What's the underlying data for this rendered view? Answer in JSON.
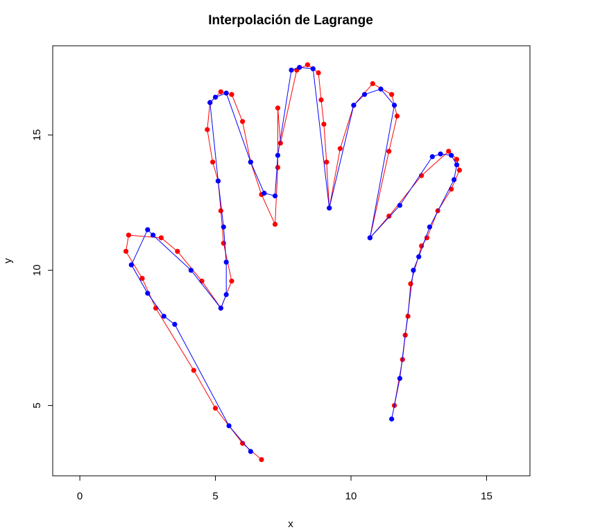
{
  "chart_data": {
    "type": "line",
    "title": "Interpolación de Lagrange",
    "xlabel": "x",
    "ylabel": "y",
    "xlim": [
      -1,
      16.6
    ],
    "ylim": [
      2.4,
      18.3
    ],
    "x_ticks": [
      0,
      5,
      10,
      15
    ],
    "y_ticks": [
      5,
      10,
      15
    ],
    "grid": false,
    "legend": "none",
    "series": [
      {
        "color": "#ff0000",
        "marker": "circle",
        "points": [
          [
            6.7,
            3.0
          ],
          [
            6.0,
            3.6
          ],
          [
            5.0,
            4.9
          ],
          [
            4.2,
            6.3
          ],
          [
            2.8,
            8.6
          ],
          [
            2.3,
            9.7
          ],
          [
            1.7,
            10.7
          ],
          [
            1.8,
            11.3
          ],
          [
            3.0,
            11.2
          ],
          [
            3.6,
            10.7
          ],
          [
            4.5,
            9.6
          ],
          [
            5.2,
            8.6
          ],
          [
            5.6,
            9.6
          ],
          [
            5.3,
            11.0
          ],
          [
            5.2,
            12.2
          ],
          [
            5.1,
            13.3
          ],
          [
            4.9,
            14.0
          ],
          [
            4.7,
            15.2
          ],
          [
            4.8,
            16.2
          ],
          [
            5.2,
            16.6
          ],
          [
            5.6,
            16.5
          ],
          [
            6.0,
            15.5
          ],
          [
            6.3,
            14.0
          ],
          [
            6.7,
            12.8
          ],
          [
            7.2,
            11.7
          ],
          [
            7.3,
            13.8
          ],
          [
            7.3,
            16.0
          ],
          [
            7.4,
            14.7
          ],
          [
            8.0,
            17.4
          ],
          [
            8.4,
            17.6
          ],
          [
            8.8,
            17.3
          ],
          [
            8.9,
            16.3
          ],
          [
            9.0,
            15.4
          ],
          [
            9.1,
            14.0
          ],
          [
            9.2,
            12.3
          ],
          [
            9.6,
            14.5
          ],
          [
            10.1,
            16.1
          ],
          [
            10.8,
            16.9
          ],
          [
            11.5,
            16.5
          ],
          [
            11.7,
            15.7
          ],
          [
            11.4,
            14.4
          ],
          [
            10.7,
            11.2
          ],
          [
            11.4,
            12.0
          ],
          [
            12.6,
            13.5
          ],
          [
            13.6,
            14.4
          ],
          [
            13.9,
            14.1
          ],
          [
            14.0,
            13.7
          ],
          [
            13.7,
            13.0
          ],
          [
            13.2,
            12.2
          ],
          [
            12.8,
            11.2
          ],
          [
            12.6,
            10.9
          ],
          [
            12.2,
            9.5
          ],
          [
            12.1,
            8.3
          ],
          [
            12.0,
            7.6
          ],
          [
            11.9,
            6.7
          ],
          [
            11.6,
            5.0
          ]
        ]
      },
      {
        "color": "#0000ff",
        "marker": "circle",
        "points": [
          [
            6.3,
            3.3
          ],
          [
            5.5,
            4.25
          ],
          [
            3.5,
            8.0
          ],
          [
            3.1,
            8.3
          ],
          [
            2.5,
            9.15
          ],
          [
            1.9,
            10.2
          ],
          [
            2.5,
            11.5
          ],
          [
            2.7,
            11.3
          ],
          [
            4.1,
            10.0
          ],
          [
            5.2,
            8.6
          ],
          [
            5.4,
            9.1
          ],
          [
            5.4,
            10.3
          ],
          [
            5.3,
            11.6
          ],
          [
            5.1,
            13.3
          ],
          [
            4.8,
            16.2
          ],
          [
            5.0,
            16.4
          ],
          [
            5.4,
            16.55
          ],
          [
            6.3,
            14.0
          ],
          [
            6.8,
            12.85
          ],
          [
            7.2,
            12.75
          ],
          [
            7.3,
            14.25
          ],
          [
            7.8,
            17.4
          ],
          [
            8.1,
            17.5
          ],
          [
            8.6,
            17.45
          ],
          [
            9.2,
            12.3
          ],
          [
            10.1,
            16.1
          ],
          [
            10.5,
            16.5
          ],
          [
            11.1,
            16.7
          ],
          [
            11.6,
            16.1
          ],
          [
            10.7,
            11.2
          ],
          [
            11.8,
            12.4
          ],
          [
            13.0,
            14.2
          ],
          [
            13.3,
            14.3
          ],
          [
            13.7,
            14.25
          ],
          [
            13.9,
            13.9
          ],
          [
            13.8,
            13.35
          ],
          [
            12.9,
            11.6
          ],
          [
            12.5,
            10.5
          ],
          [
            12.3,
            10.0
          ],
          [
            11.8,
            6.0
          ],
          [
            11.5,
            4.5
          ]
        ]
      }
    ]
  }
}
